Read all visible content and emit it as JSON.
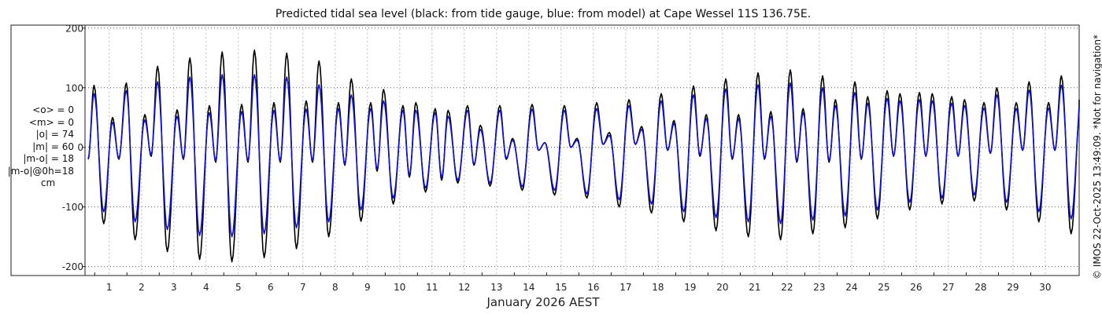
{
  "title": "Predicted tidal sea level (black: from tide gauge, blue: from model) at Cape Wessel 11S 136.75E.",
  "stats": [
    "<o> = 0",
    "<m> = 0",
    "|o| = 74",
    "|m| = 60",
    "|m-o| = 18",
    "|m-o|@0h=18",
    "cm"
  ],
  "xlabel": "January 2026 AEST",
  "credit": "© IMOS 22-Oct-2025 13:49:09. *Not for navigation*",
  "colors": {
    "gauge": "#000000",
    "model": "#1010dd",
    "grid": "#555555",
    "grid_x": "#b8c0cc"
  },
  "chart_data": {
    "type": "line",
    "title": "Predicted tidal sea level (black: from tide gauge, blue: from model) at Cape Wessel 11S 136.75E.",
    "xlabel": "January 2026 AEST",
    "ylabel": "",
    "units": "cm",
    "xlim": [
      0.2,
      31.0
    ],
    "ylim": [
      -215,
      205
    ],
    "x_ticks": [
      "1",
      "2",
      "3",
      "4",
      "5",
      "6",
      "7",
      "8",
      "9",
      "10",
      "11",
      "12",
      "13",
      "14",
      "15",
      "16",
      "17",
      "18",
      "19",
      "20",
      "21",
      "22",
      "23",
      "24",
      "25",
      "26",
      "27",
      "28",
      "29",
      "30"
    ],
    "y_ticks": [
      200,
      100,
      0,
      -100,
      -200
    ],
    "grid": true,
    "series": [
      {
        "name": "black: from tide gauge",
        "color": "#000000",
        "extrema": [
          [
            0.3,
            -20
          ],
          [
            0.48,
            104
          ],
          [
            0.78,
            -128
          ],
          [
            1.05,
            50
          ],
          [
            1.25,
            -20
          ],
          [
            1.48,
            108
          ],
          [
            1.75,
            -155
          ],
          [
            2.05,
            55
          ],
          [
            2.25,
            -15
          ],
          [
            2.45,
            136
          ],
          [
            2.75,
            -175
          ],
          [
            3.05,
            63
          ],
          [
            3.25,
            -20
          ],
          [
            3.45,
            150
          ],
          [
            3.75,
            -188
          ],
          [
            4.05,
            70
          ],
          [
            4.25,
            -25
          ],
          [
            4.45,
            160
          ],
          [
            4.75,
            -192
          ],
          [
            5.05,
            72
          ],
          [
            5.25,
            -25
          ],
          [
            5.45,
            163
          ],
          [
            5.75,
            -185
          ],
          [
            6.05,
            75
          ],
          [
            6.25,
            -25
          ],
          [
            6.45,
            158
          ],
          [
            6.75,
            -170
          ],
          [
            7.05,
            78
          ],
          [
            7.25,
            -25
          ],
          [
            7.45,
            145
          ],
          [
            7.75,
            -150
          ],
          [
            8.05,
            75
          ],
          [
            8.25,
            -30
          ],
          [
            8.45,
            115
          ],
          [
            8.75,
            -124
          ],
          [
            9.05,
            75
          ],
          [
            9.25,
            -40
          ],
          [
            9.45,
            97
          ],
          [
            9.75,
            -95
          ],
          [
            10.05,
            70
          ],
          [
            10.25,
            -50
          ],
          [
            10.45,
            75
          ],
          [
            10.75,
            -75
          ],
          [
            11.05,
            65
          ],
          [
            11.25,
            -55
          ],
          [
            11.45,
            62
          ],
          [
            11.75,
            -60
          ],
          [
            12.05,
            70
          ],
          [
            12.25,
            -30
          ],
          [
            12.45,
            37
          ],
          [
            12.75,
            -65
          ],
          [
            13.05,
            70
          ],
          [
            13.25,
            -20
          ],
          [
            13.45,
            15
          ],
          [
            13.75,
            -72
          ],
          [
            14.05,
            72
          ],
          [
            14.25,
            -5
          ],
          [
            14.45,
            8
          ],
          [
            14.75,
            -80
          ],
          [
            15.05,
            70
          ],
          [
            15.25,
            0
          ],
          [
            15.45,
            15
          ],
          [
            15.75,
            -85
          ],
          [
            16.05,
            75
          ],
          [
            16.25,
            5
          ],
          [
            16.45,
            25
          ],
          [
            16.75,
            -100
          ],
          [
            17.05,
            80
          ],
          [
            17.25,
            5
          ],
          [
            17.45,
            35
          ],
          [
            17.75,
            -110
          ],
          [
            18.05,
            90
          ],
          [
            18.25,
            -5
          ],
          [
            18.45,
            45
          ],
          [
            18.75,
            -125
          ],
          [
            19.05,
            103
          ],
          [
            19.25,
            -15
          ],
          [
            19.45,
            55
          ],
          [
            19.75,
            -140
          ],
          [
            20.05,
            115
          ],
          [
            20.25,
            -20
          ],
          [
            20.45,
            55
          ],
          [
            20.75,
            -150
          ],
          [
            21.05,
            125
          ],
          [
            21.25,
            -20
          ],
          [
            21.45,
            60
          ],
          [
            21.75,
            -155
          ],
          [
            22.05,
            130
          ],
          [
            22.25,
            -25
          ],
          [
            22.45,
            65
          ],
          [
            22.75,
            -145
          ],
          [
            23.05,
            120
          ],
          [
            23.25,
            -25
          ],
          [
            23.45,
            80
          ],
          [
            23.75,
            -135
          ],
          [
            24.05,
            110
          ],
          [
            24.25,
            -20
          ],
          [
            24.45,
            85
          ],
          [
            24.75,
            -120
          ],
          [
            25.05,
            95
          ],
          [
            25.25,
            -15
          ],
          [
            25.45,
            90
          ],
          [
            25.75,
            -105
          ],
          [
            26.05,
            92
          ],
          [
            26.25,
            -15
          ],
          [
            26.45,
            90
          ],
          [
            26.75,
            -95
          ],
          [
            27.05,
            85
          ],
          [
            27.25,
            -15
          ],
          [
            27.45,
            80
          ],
          [
            27.75,
            -90
          ],
          [
            28.05,
            75
          ],
          [
            28.25,
            -10
          ],
          [
            28.45,
            100
          ],
          [
            28.75,
            -105
          ],
          [
            29.05,
            75
          ],
          [
            29.25,
            -5
          ],
          [
            29.45,
            110
          ],
          [
            29.75,
            -125
          ],
          [
            30.05,
            75
          ],
          [
            30.25,
            -5
          ],
          [
            30.45,
            120
          ],
          [
            30.75,
            -145
          ],
          [
            31.05,
            80
          ]
        ]
      },
      {
        "name": "blue: from model",
        "color": "#1010dd",
        "extrema": [
          [
            0.3,
            -18
          ],
          [
            0.48,
            90
          ],
          [
            0.78,
            -108
          ],
          [
            1.05,
            42
          ],
          [
            1.25,
            -18
          ],
          [
            1.48,
            95
          ],
          [
            1.75,
            -125
          ],
          [
            2.05,
            46
          ],
          [
            2.25,
            -12
          ],
          [
            2.45,
            110
          ],
          [
            2.75,
            -138
          ],
          [
            3.05,
            52
          ],
          [
            3.25,
            -18
          ],
          [
            3.45,
            118
          ],
          [
            3.75,
            -148
          ],
          [
            4.05,
            58
          ],
          [
            4.25,
            -22
          ],
          [
            4.45,
            122
          ],
          [
            4.75,
            -150
          ],
          [
            5.05,
            60
          ],
          [
            5.25,
            -22
          ],
          [
            5.45,
            122
          ],
          [
            5.75,
            -145
          ],
          [
            6.05,
            62
          ],
          [
            6.25,
            -22
          ],
          [
            6.45,
            118
          ],
          [
            6.75,
            -135
          ],
          [
            7.05,
            64
          ],
          [
            7.25,
            -22
          ],
          [
            7.45,
            105
          ],
          [
            7.75,
            -125
          ],
          [
            8.05,
            65
          ],
          [
            8.25,
            -28
          ],
          [
            8.45,
            88
          ],
          [
            8.75,
            -105
          ],
          [
            9.05,
            65
          ],
          [
            9.25,
            -36
          ],
          [
            9.45,
            78
          ],
          [
            9.75,
            -85
          ],
          [
            10.05,
            62
          ],
          [
            10.25,
            -46
          ],
          [
            10.45,
            62
          ],
          [
            10.75,
            -68
          ],
          [
            11.05,
            58
          ],
          [
            11.25,
            -50
          ],
          [
            11.45,
            52
          ],
          [
            11.75,
            -55
          ],
          [
            12.05,
            62
          ],
          [
            12.25,
            -28
          ],
          [
            12.45,
            30
          ],
          [
            12.75,
            -60
          ],
          [
            13.05,
            62
          ],
          [
            13.25,
            -18
          ],
          [
            13.45,
            12
          ],
          [
            13.75,
            -66
          ],
          [
            14.05,
            64
          ],
          [
            14.25,
            -5
          ],
          [
            14.45,
            8
          ],
          [
            14.75,
            -72
          ],
          [
            15.05,
            62
          ],
          [
            15.25,
            0
          ],
          [
            15.45,
            12
          ],
          [
            15.75,
            -78
          ],
          [
            16.05,
            65
          ],
          [
            16.25,
            5
          ],
          [
            16.45,
            20
          ],
          [
            16.75,
            -88
          ],
          [
            17.05,
            70
          ],
          [
            17.25,
            5
          ],
          [
            17.45,
            30
          ],
          [
            17.75,
            -95
          ],
          [
            18.05,
            78
          ],
          [
            18.25,
            -5
          ],
          [
            18.45,
            40
          ],
          [
            18.75,
            -108
          ],
          [
            19.05,
            88
          ],
          [
            19.25,
            -12
          ],
          [
            19.45,
            48
          ],
          [
            19.75,
            -118
          ],
          [
            20.05,
            98
          ],
          [
            20.25,
            -18
          ],
          [
            20.45,
            48
          ],
          [
            20.75,
            -125
          ],
          [
            21.05,
            105
          ],
          [
            21.25,
            -18
          ],
          [
            21.45,
            52
          ],
          [
            21.75,
            -128
          ],
          [
            22.05,
            108
          ],
          [
            22.25,
            -22
          ],
          [
            22.45,
            58
          ],
          [
            22.75,
            -122
          ],
          [
            23.05,
            100
          ],
          [
            23.25,
            -22
          ],
          [
            23.45,
            70
          ],
          [
            23.75,
            -115
          ],
          [
            24.05,
            92
          ],
          [
            24.25,
            -18
          ],
          [
            24.45,
            74
          ],
          [
            24.75,
            -105
          ],
          [
            25.05,
            82
          ],
          [
            25.25,
            -14
          ],
          [
            25.45,
            78
          ],
          [
            25.75,
            -92
          ],
          [
            26.05,
            80
          ],
          [
            26.25,
            -14
          ],
          [
            26.45,
            78
          ],
          [
            26.75,
            -85
          ],
          [
            27.05,
            74
          ],
          [
            27.25,
            -14
          ],
          [
            27.45,
            70
          ],
          [
            27.75,
            -80
          ],
          [
            28.05,
            66
          ],
          [
            28.25,
            -10
          ],
          [
            28.45,
            88
          ],
          [
            28.75,
            -92
          ],
          [
            29.05,
            65
          ],
          [
            29.25,
            -5
          ],
          [
            29.45,
            96
          ],
          [
            29.75,
            -108
          ],
          [
            30.05,
            66
          ],
          [
            30.25,
            -5
          ],
          [
            30.45,
            104
          ],
          [
            30.75,
            -120
          ],
          [
            31.05,
            70
          ]
        ]
      }
    ]
  }
}
